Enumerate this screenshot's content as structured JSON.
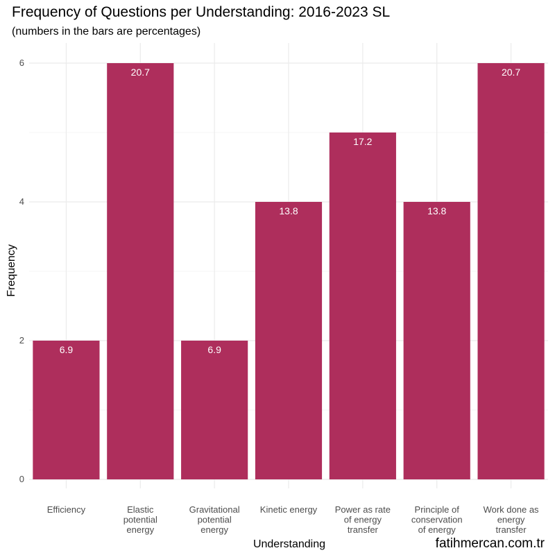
{
  "chart_data": {
    "type": "bar",
    "title": "Frequency of Questions per Understanding: 2016-2023 SL",
    "subtitle": "(numbers in the bars are percentages)",
    "xlabel": "Understanding",
    "ylabel": "Frequency",
    "ylim": [
      0,
      6.25
    ],
    "yticks": [
      0,
      2,
      4,
      6
    ],
    "grid": true,
    "bar_color": "#ae2e5c",
    "categories": [
      [
        "Efficiency"
      ],
      [
        "Elastic",
        "potential",
        "energy"
      ],
      [
        "Gravitational",
        "potential",
        "energy"
      ],
      [
        "Kinetic energy"
      ],
      [
        "Power as rate",
        "of energy",
        "transfer"
      ],
      [
        "Principle of",
        "conservation",
        "of energy"
      ],
      [
        "Work done as",
        "energy",
        "transfer"
      ]
    ],
    "values": [
      2,
      6,
      2,
      4,
      5,
      4,
      6
    ],
    "data_labels": [
      "6.9",
      "20.7",
      "6.9",
      "13.8",
      "17.2",
      "13.8",
      "20.7"
    ]
  },
  "watermark": "fatihmercan.com.tr"
}
